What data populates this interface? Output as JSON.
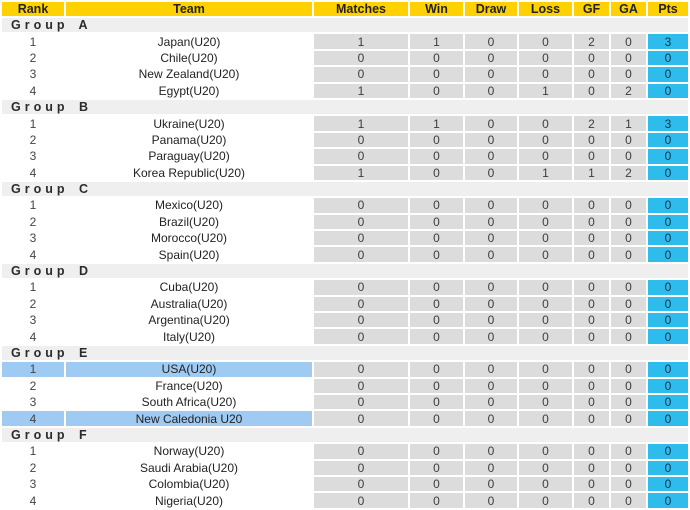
{
  "colors": {
    "header_bg": "#FFD100",
    "header_text": "#222222",
    "group_row_bg": "#EFEFEF",
    "stat_cell_bg": "#DCDCDC",
    "pts_cell_bg": "#2EBCEC",
    "highlight_row_bg": "#9FCAF2",
    "row_bg": "#FFFFFF"
  },
  "chart_data": {
    "type": "table",
    "columns": [
      "Rank",
      "Team",
      "Matches",
      "Win",
      "Draw",
      "Loss",
      "GF",
      "GA",
      "Pts"
    ],
    "groups": [
      {
        "label": "Group A",
        "rows": [
          {
            "rank": "1",
            "team": "Japan(U20)",
            "matches": "1",
            "win": "1",
            "draw": "0",
            "loss": "0",
            "gf": "2",
            "ga": "0",
            "pts": "3",
            "highlight": false
          },
          {
            "rank": "2",
            "team": "Chile(U20)",
            "matches": "0",
            "win": "0",
            "draw": "0",
            "loss": "0",
            "gf": "0",
            "ga": "0",
            "pts": "0",
            "highlight": false
          },
          {
            "rank": "3",
            "team": "New Zealand(U20)",
            "matches": "0",
            "win": "0",
            "draw": "0",
            "loss": "0",
            "gf": "0",
            "ga": "0",
            "pts": "0",
            "highlight": false
          },
          {
            "rank": "4",
            "team": "Egypt(U20)",
            "matches": "1",
            "win": "0",
            "draw": "0",
            "loss": "1",
            "gf": "0",
            "ga": "2",
            "pts": "0",
            "highlight": false
          }
        ]
      },
      {
        "label": "Group B",
        "rows": [
          {
            "rank": "1",
            "team": "Ukraine(U20)",
            "matches": "1",
            "win": "1",
            "draw": "0",
            "loss": "0",
            "gf": "2",
            "ga": "1",
            "pts": "3",
            "highlight": false
          },
          {
            "rank": "2",
            "team": "Panama(U20)",
            "matches": "0",
            "win": "0",
            "draw": "0",
            "loss": "0",
            "gf": "0",
            "ga": "0",
            "pts": "0",
            "highlight": false
          },
          {
            "rank": "3",
            "team": "Paraguay(U20)",
            "matches": "0",
            "win": "0",
            "draw": "0",
            "loss": "0",
            "gf": "0",
            "ga": "0",
            "pts": "0",
            "highlight": false
          },
          {
            "rank": "4",
            "team": "Korea Republic(U20)",
            "matches": "1",
            "win": "0",
            "draw": "0",
            "loss": "1",
            "gf": "1",
            "ga": "2",
            "pts": "0",
            "highlight": false
          }
        ]
      },
      {
        "label": "Group C",
        "rows": [
          {
            "rank": "1",
            "team": "Mexico(U20)",
            "matches": "0",
            "win": "0",
            "draw": "0",
            "loss": "0",
            "gf": "0",
            "ga": "0",
            "pts": "0",
            "highlight": false
          },
          {
            "rank": "2",
            "team": "Brazil(U20)",
            "matches": "0",
            "win": "0",
            "draw": "0",
            "loss": "0",
            "gf": "0",
            "ga": "0",
            "pts": "0",
            "highlight": false
          },
          {
            "rank": "3",
            "team": "Morocco(U20)",
            "matches": "0",
            "win": "0",
            "draw": "0",
            "loss": "0",
            "gf": "0",
            "ga": "0",
            "pts": "0",
            "highlight": false
          },
          {
            "rank": "4",
            "team": "Spain(U20)",
            "matches": "0",
            "win": "0",
            "draw": "0",
            "loss": "0",
            "gf": "0",
            "ga": "0",
            "pts": "0",
            "highlight": false
          }
        ]
      },
      {
        "label": "Group D",
        "rows": [
          {
            "rank": "1",
            "team": "Cuba(U20)",
            "matches": "0",
            "win": "0",
            "draw": "0",
            "loss": "0",
            "gf": "0",
            "ga": "0",
            "pts": "0",
            "highlight": false
          },
          {
            "rank": "2",
            "team": "Australia(U20)",
            "matches": "0",
            "win": "0",
            "draw": "0",
            "loss": "0",
            "gf": "0",
            "ga": "0",
            "pts": "0",
            "highlight": false
          },
          {
            "rank": "3",
            "team": "Argentina(U20)",
            "matches": "0",
            "win": "0",
            "draw": "0",
            "loss": "0",
            "gf": "0",
            "ga": "0",
            "pts": "0",
            "highlight": false
          },
          {
            "rank": "4",
            "team": "Italy(U20)",
            "matches": "0",
            "win": "0",
            "draw": "0",
            "loss": "0",
            "gf": "0",
            "ga": "0",
            "pts": "0",
            "highlight": false
          }
        ]
      },
      {
        "label": "Group E",
        "rows": [
          {
            "rank": "1",
            "team": "USA(U20)",
            "matches": "0",
            "win": "0",
            "draw": "0",
            "loss": "0",
            "gf": "0",
            "ga": "0",
            "pts": "0",
            "highlight": true
          },
          {
            "rank": "2",
            "team": "France(U20)",
            "matches": "0",
            "win": "0",
            "draw": "0",
            "loss": "0",
            "gf": "0",
            "ga": "0",
            "pts": "0",
            "highlight": false
          },
          {
            "rank": "3",
            "team": "South Africa(U20)",
            "matches": "0",
            "win": "0",
            "draw": "0",
            "loss": "0",
            "gf": "0",
            "ga": "0",
            "pts": "0",
            "highlight": false
          },
          {
            "rank": "4",
            "team": "New Caledonia U20",
            "matches": "0",
            "win": "0",
            "draw": "0",
            "loss": "0",
            "gf": "0",
            "ga": "0",
            "pts": "0",
            "highlight": true
          }
        ]
      },
      {
        "label": "Group F",
        "rows": [
          {
            "rank": "1",
            "team": "Norway(U20)",
            "matches": "0",
            "win": "0",
            "draw": "0",
            "loss": "0",
            "gf": "0",
            "ga": "0",
            "pts": "0",
            "highlight": false
          },
          {
            "rank": "2",
            "team": "Saudi Arabia(U20)",
            "matches": "0",
            "win": "0",
            "draw": "0",
            "loss": "0",
            "gf": "0",
            "ga": "0",
            "pts": "0",
            "highlight": false
          },
          {
            "rank": "3",
            "team": "Colombia(U20)",
            "matches": "0",
            "win": "0",
            "draw": "0",
            "loss": "0",
            "gf": "0",
            "ga": "0",
            "pts": "0",
            "highlight": false
          },
          {
            "rank": "4",
            "team": "Nigeria(U20)",
            "matches": "0",
            "win": "0",
            "draw": "0",
            "loss": "0",
            "gf": "0",
            "ga": "0",
            "pts": "0",
            "highlight": false
          }
        ]
      }
    ]
  }
}
